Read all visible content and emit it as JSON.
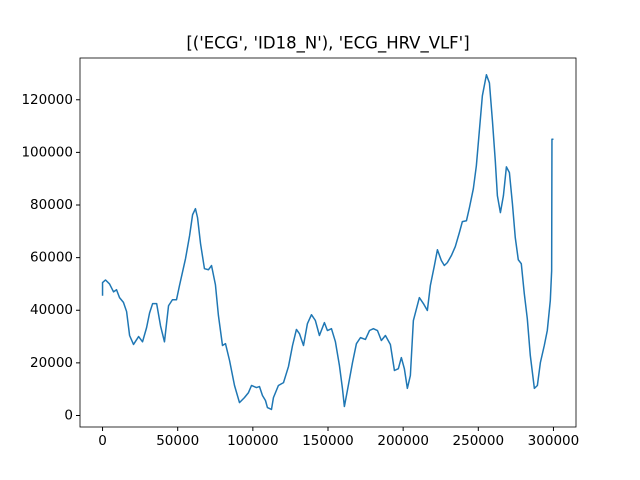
{
  "chart_data": {
    "type": "line",
    "title": "[('ECG', 'ID18_N'), 'ECG_HRV_VLF']",
    "x": [
      0,
      0,
      2000,
      4650,
      7300,
      9300,
      11300,
      13900,
      16000,
      18000,
      20600,
      24000,
      26600,
      29300,
      31300,
      33300,
      36000,
      38600,
      41200,
      43900,
      46500,
      49200,
      51200,
      55200,
      57900,
      59900,
      61800,
      63200,
      65200,
      67800,
      70500,
      72500,
      75100,
      77100,
      79800,
      81800,
      84500,
      87800,
      91100,
      94400,
      97100,
      99100,
      102400,
      104400,
      106400,
      108400,
      109700,
      112400,
      113700,
      117000,
      120400,
      123700,
      126400,
      129000,
      131000,
      133700,
      136300,
      139000,
      141600,
      144300,
      147600,
      149600,
      152300,
      154900,
      157600,
      159600,
      160900,
      162900,
      166300,
      168900,
      171600,
      174900,
      177600,
      180200,
      182900,
      185500,
      188200,
      191500,
      194200,
      196800,
      198800,
      200800,
      202800,
      204800,
      206800,
      210800,
      213500,
      216100,
      218100,
      220800,
      222800,
      225400,
      227400,
      229400,
      232100,
      234700,
      237400,
      239400,
      242100,
      244100,
      246700,
      248700,
      250700,
      252700,
      255400,
      257400,
      259400,
      261300,
      262700,
      264700,
      266700,
      268700,
      270700,
      272700,
      274600,
      276600,
      278600,
      280600,
      282600,
      284600,
      287300,
      289300,
      291300,
      293900,
      295900,
      297900,
      298800,
      299000,
      300000
    ],
    "series": [
      {
        "color": "#1f77b4",
        "values": [
          45500,
          50500,
          51500,
          50000,
          47000,
          47800,
          44800,
          43000,
          39500,
          30400,
          27000,
          30000,
          28000,
          33400,
          39000,
          42500,
          42500,
          34000,
          28000,
          41700,
          44000,
          44000,
          49400,
          59600,
          68300,
          76300,
          78600,
          75200,
          65300,
          55800,
          55400,
          57000,
          49700,
          38000,
          26600,
          27300,
          20900,
          11400,
          4900,
          6800,
          8700,
          11400,
          10600,
          11000,
          7600,
          5700,
          3000,
          2300,
          6800,
          11400,
          12500,
          18600,
          26600,
          32700,
          31100,
          26600,
          34900,
          38300,
          36100,
          30400,
          35300,
          32300,
          33000,
          28100,
          19000,
          10300,
          3400,
          9500,
          20100,
          27300,
          29600,
          28900,
          32300,
          33000,
          32300,
          28500,
          30400,
          27000,
          17100,
          17800,
          22000,
          17800,
          10300,
          15200,
          36100,
          44800,
          42500,
          39900,
          49400,
          57000,
          63000,
          58900,
          57000,
          58100,
          60800,
          64200,
          69500,
          73700,
          74000,
          79000,
          86200,
          94900,
          108200,
          121500,
          129500,
          126400,
          112000,
          96800,
          83500,
          77100,
          83500,
          94500,
          92300,
          80500,
          67600,
          59200,
          57700,
          46300,
          36800,
          22800,
          10300,
          11400,
          20100,
          26600,
          32300,
          43700,
          55000,
          105000,
          105000
        ]
      }
    ],
    "xlim": [
      -15000,
      315000
    ],
    "ylim": [
      -4375,
      135875
    ],
    "xticks": [
      0,
      50000,
      100000,
      150000,
      200000,
      250000,
      300000
    ],
    "yticks": [
      0,
      20000,
      40000,
      60000,
      80000,
      100000,
      120000
    ]
  }
}
